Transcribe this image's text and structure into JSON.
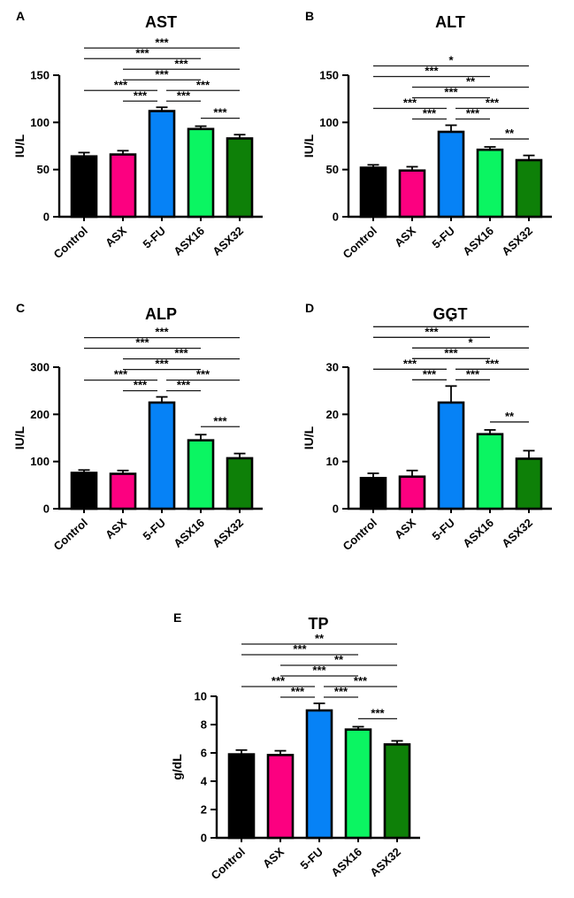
{
  "style": {
    "background": "#ffffff",
    "axis_color": "#000000",
    "bracket_color": "#1b1b1b",
    "error_bar_color": "#000000",
    "bar_colors": [
      "#000000",
      "#FC0080",
      "#0682F6",
      "#0BF562",
      "#0E8008"
    ]
  },
  "chart_data": [
    {
      "type": "bar",
      "panel_label": "A",
      "title": "AST",
      "ylabel": "IU/L",
      "ylim": [
        0,
        150
      ],
      "yticks": [
        0,
        50,
        100,
        150
      ],
      "categories": [
        "Control",
        "ASX",
        "5-FU",
        "ASX16",
        "ASX32"
      ],
      "values": [
        64,
        66,
        112,
        93,
        83
      ],
      "errors": [
        4,
        4,
        4,
        3,
        4
      ],
      "significance": [
        {
          "a": "Control",
          "b": "ASX32",
          "stars": "***",
          "row": 0
        },
        {
          "a": "Control",
          "b": "ASX16",
          "stars": "***",
          "row": 1
        },
        {
          "a": "ASX",
          "b": "ASX32",
          "stars": "***",
          "row": 2
        },
        {
          "a": "ASX",
          "b": "ASX16",
          "stars": "***",
          "row": 3
        },
        {
          "a": "Control",
          "b": "5-FU",
          "stars": "***",
          "row": 4
        },
        {
          "a": "5-FU",
          "b": "ASX32",
          "stars": "***",
          "row": 4
        },
        {
          "a": "ASX",
          "b": "5-FU",
          "stars": "***",
          "row": 5
        },
        {
          "a": "5-FU",
          "b": "ASX16",
          "stars": "***",
          "row": 5
        },
        {
          "a": "ASX16",
          "b": "ASX32",
          "stars": "***",
          "row": "low"
        }
      ]
    },
    {
      "type": "bar",
      "panel_label": "B",
      "title": "ALT",
      "ylabel": "IU/L",
      "ylim": [
        0,
        150
      ],
      "yticks": [
        0,
        50,
        100,
        150
      ],
      "categories": [
        "Control",
        "ASX",
        "5-FU",
        "ASX16",
        "ASX32"
      ],
      "values": [
        52,
        49,
        90,
        71,
        60
      ],
      "errors": [
        3,
        4,
        7,
        3,
        5
      ],
      "significance": [
        {
          "a": "Control",
          "b": "ASX32",
          "stars": "*",
          "row": 0
        },
        {
          "a": "Control",
          "b": "ASX16",
          "stars": "***",
          "row": 1
        },
        {
          "a": "ASX",
          "b": "ASX32",
          "stars": "**",
          "row": 2
        },
        {
          "a": "ASX",
          "b": "ASX16",
          "stars": "***",
          "row": 3
        },
        {
          "a": "Control",
          "b": "5-FU",
          "stars": "***",
          "row": 4
        },
        {
          "a": "5-FU",
          "b": "ASX32",
          "stars": "***",
          "row": 4
        },
        {
          "a": "ASX",
          "b": "5-FU",
          "stars": "***",
          "row": 5
        },
        {
          "a": "5-FU",
          "b": "ASX16",
          "stars": "***",
          "row": 5
        },
        {
          "a": "ASX16",
          "b": "ASX32",
          "stars": "**",
          "row": "low"
        }
      ]
    },
    {
      "type": "bar",
      "panel_label": "C",
      "title": "ALP",
      "ylabel": "IU/L",
      "ylim": [
        0,
        300
      ],
      "yticks": [
        0,
        100,
        200,
        300
      ],
      "categories": [
        "Control",
        "ASX",
        "5-FU",
        "ASX16",
        "ASX32"
      ],
      "values": [
        76,
        74,
        225,
        145,
        107
      ],
      "errors": [
        6,
        7,
        12,
        12,
        10
      ],
      "significance": [
        {
          "a": "Control",
          "b": "ASX32",
          "stars": "***",
          "row": 0
        },
        {
          "a": "Control",
          "b": "ASX16",
          "stars": "***",
          "row": 1
        },
        {
          "a": "ASX",
          "b": "ASX32",
          "stars": "***",
          "row": 2
        },
        {
          "a": "ASX",
          "b": "ASX16",
          "stars": "***",
          "row": 3
        },
        {
          "a": "Control",
          "b": "5-FU",
          "stars": "***",
          "row": 4
        },
        {
          "a": "5-FU",
          "b": "ASX32",
          "stars": "***",
          "row": 4
        },
        {
          "a": "ASX",
          "b": "5-FU",
          "stars": "***",
          "row": 5
        },
        {
          "a": "5-FU",
          "b": "ASX16",
          "stars": "***",
          "row": 5
        },
        {
          "a": "ASX16",
          "b": "ASX32",
          "stars": "***",
          "row": "low"
        }
      ]
    },
    {
      "type": "bar",
      "panel_label": "D",
      "title": "GGT",
      "ylabel": "IU/L",
      "ylim": [
        0,
        30
      ],
      "yticks": [
        0,
        10,
        20,
        30
      ],
      "categories": [
        "Control",
        "ASX",
        "5-FU",
        "ASX16",
        "ASX32"
      ],
      "values": [
        6.5,
        6.8,
        22.5,
        15.8,
        10.6
      ],
      "errors": [
        1.0,
        1.3,
        3.5,
        0.9,
        1.7
      ],
      "significance": [
        {
          "a": "Control",
          "b": "ASX32",
          "stars": "*",
          "row": 0
        },
        {
          "a": "Control",
          "b": "ASX16",
          "stars": "***",
          "row": 1
        },
        {
          "a": "ASX",
          "b": "ASX32",
          "stars": "*",
          "row": 2
        },
        {
          "a": "ASX",
          "b": "ASX16",
          "stars": "***",
          "row": 3
        },
        {
          "a": "Control",
          "b": "5-FU",
          "stars": "***",
          "row": 4
        },
        {
          "a": "5-FU",
          "b": "ASX32",
          "stars": "***",
          "row": 4
        },
        {
          "a": "ASX",
          "b": "5-FU",
          "stars": "***",
          "row": 5
        },
        {
          "a": "5-FU",
          "b": "ASX16",
          "stars": "***",
          "row": 5
        },
        {
          "a": "ASX16",
          "b": "ASX32",
          "stars": "**",
          "row": "low"
        }
      ]
    },
    {
      "type": "bar",
      "panel_label": "E",
      "title": "TP",
      "ylabel": "g/dL",
      "ylim": [
        0,
        10
      ],
      "yticks": [
        0,
        2,
        4,
        6,
        8,
        10
      ],
      "categories": [
        "Control",
        "ASX",
        "5-FU",
        "ASX16",
        "ASX32"
      ],
      "values": [
        5.9,
        5.85,
        9.0,
        7.65,
        6.6
      ],
      "errors": [
        0.3,
        0.3,
        0.5,
        0.2,
        0.25
      ],
      "significance": [
        {
          "a": "Control",
          "b": "ASX32",
          "stars": "**",
          "row": 0
        },
        {
          "a": "Control",
          "b": "ASX16",
          "stars": "***",
          "row": 1
        },
        {
          "a": "ASX",
          "b": "ASX32",
          "stars": "**",
          "row": 2
        },
        {
          "a": "ASX",
          "b": "ASX16",
          "stars": "***",
          "row": 3
        },
        {
          "a": "Control",
          "b": "5-FU",
          "stars": "***",
          "row": 4
        },
        {
          "a": "5-FU",
          "b": "ASX32",
          "stars": "***",
          "row": 4
        },
        {
          "a": "ASX",
          "b": "5-FU",
          "stars": "***",
          "row": 5
        },
        {
          "a": "5-FU",
          "b": "ASX16",
          "stars": "***",
          "row": 5
        },
        {
          "a": "ASX16",
          "b": "ASX32",
          "stars": "***",
          "row": "low"
        }
      ]
    }
  ]
}
